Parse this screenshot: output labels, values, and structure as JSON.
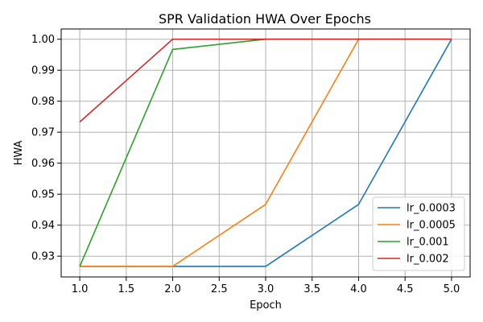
{
  "chart_data": {
    "type": "line",
    "title": "SPR Validation HWA Over Epochs",
    "xlabel": "Epoch",
    "ylabel": "HWA",
    "x": [
      1,
      2,
      3,
      4,
      5
    ],
    "xlim": [
      0.8,
      5.2
    ],
    "ylim": [
      0.9233,
      1.0033
    ],
    "xticks": [
      "1.0",
      "1.5",
      "2.0",
      "2.5",
      "3.0",
      "3.5",
      "4.0",
      "4.5",
      "5.0"
    ],
    "yticks": [
      "0.93",
      "0.94",
      "0.95",
      "0.96",
      "0.97",
      "0.98",
      "0.99",
      "1.00"
    ],
    "grid": true,
    "legend_position": "lower-right",
    "series": [
      {
        "name": "lr_0.0003",
        "color": "#1f77b4",
        "values": [
          0.9267,
          0.9267,
          0.9267,
          0.9467,
          1.0
        ]
      },
      {
        "name": "lr_0.0005",
        "color": "#ff7f0e",
        "values": [
          0.9267,
          0.9267,
          0.9467,
          1.0,
          1.0
        ]
      },
      {
        "name": "lr_0.001",
        "color": "#2ca02c",
        "values": [
          0.9267,
          0.9967,
          1.0,
          1.0,
          1.0
        ]
      },
      {
        "name": "lr_0.002",
        "color": "#d62728",
        "values": [
          0.9733,
          1.0,
          1.0,
          1.0,
          1.0
        ]
      }
    ]
  }
}
